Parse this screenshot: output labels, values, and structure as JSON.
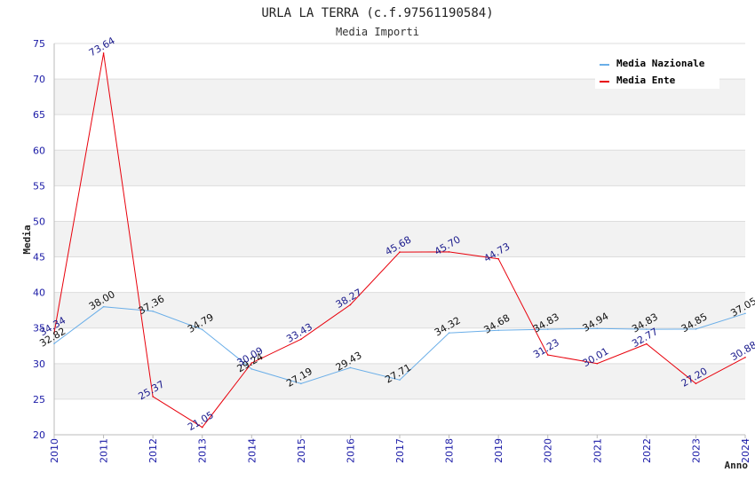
{
  "chart_data": {
    "type": "line",
    "title": "URLA LA TERRA (c.f.97561190584)",
    "subtitle": "Media Importi",
    "xlabel": "Anno",
    "ylabel": "Media",
    "ylim": [
      20,
      75
    ],
    "yticks": [
      "20",
      "25",
      "30",
      "35",
      "40",
      "45",
      "50",
      "55",
      "60",
      "65",
      "70",
      "75"
    ],
    "categories": [
      "2010",
      "2011",
      "2012",
      "2013",
      "2014",
      "2015",
      "2016",
      "2017",
      "2018",
      "2019",
      "2020",
      "2021",
      "2022",
      "2023",
      "2024"
    ],
    "series": [
      {
        "name": "Media Nazionale",
        "color": "#6aaee8",
        "values": [
          32.82,
          38.0,
          37.36,
          34.79,
          29.24,
          27.19,
          29.43,
          27.71,
          34.32,
          34.68,
          34.83,
          34.94,
          34.83,
          34.85,
          37.05
        ],
        "labels": [
          "32.82",
          "38.00",
          "37.36",
          "34.79",
          "29.24",
          "27.19",
          "29.43",
          "27.71",
          "34.32",
          "34.68",
          "34.83",
          "34.94",
          "34.83",
          "34.85",
          "37.05"
        ]
      },
      {
        "name": "Media Ente",
        "color": "#e8000b",
        "values": [
          34.34,
          73.64,
          25.37,
          21.05,
          30.09,
          33.43,
          38.27,
          45.68,
          45.7,
          44.73,
          31.23,
          30.01,
          32.77,
          27.2,
          30.88
        ],
        "labels": [
          "34.34",
          "73.64",
          "25.37",
          "21.05",
          "30.09",
          "33.43",
          "38.27",
          "45.68",
          "45.70",
          "44.73",
          "31.23",
          "30.01",
          "32.77",
          "27.20",
          "30.88"
        ]
      }
    ],
    "legend_position": "top-right"
  }
}
